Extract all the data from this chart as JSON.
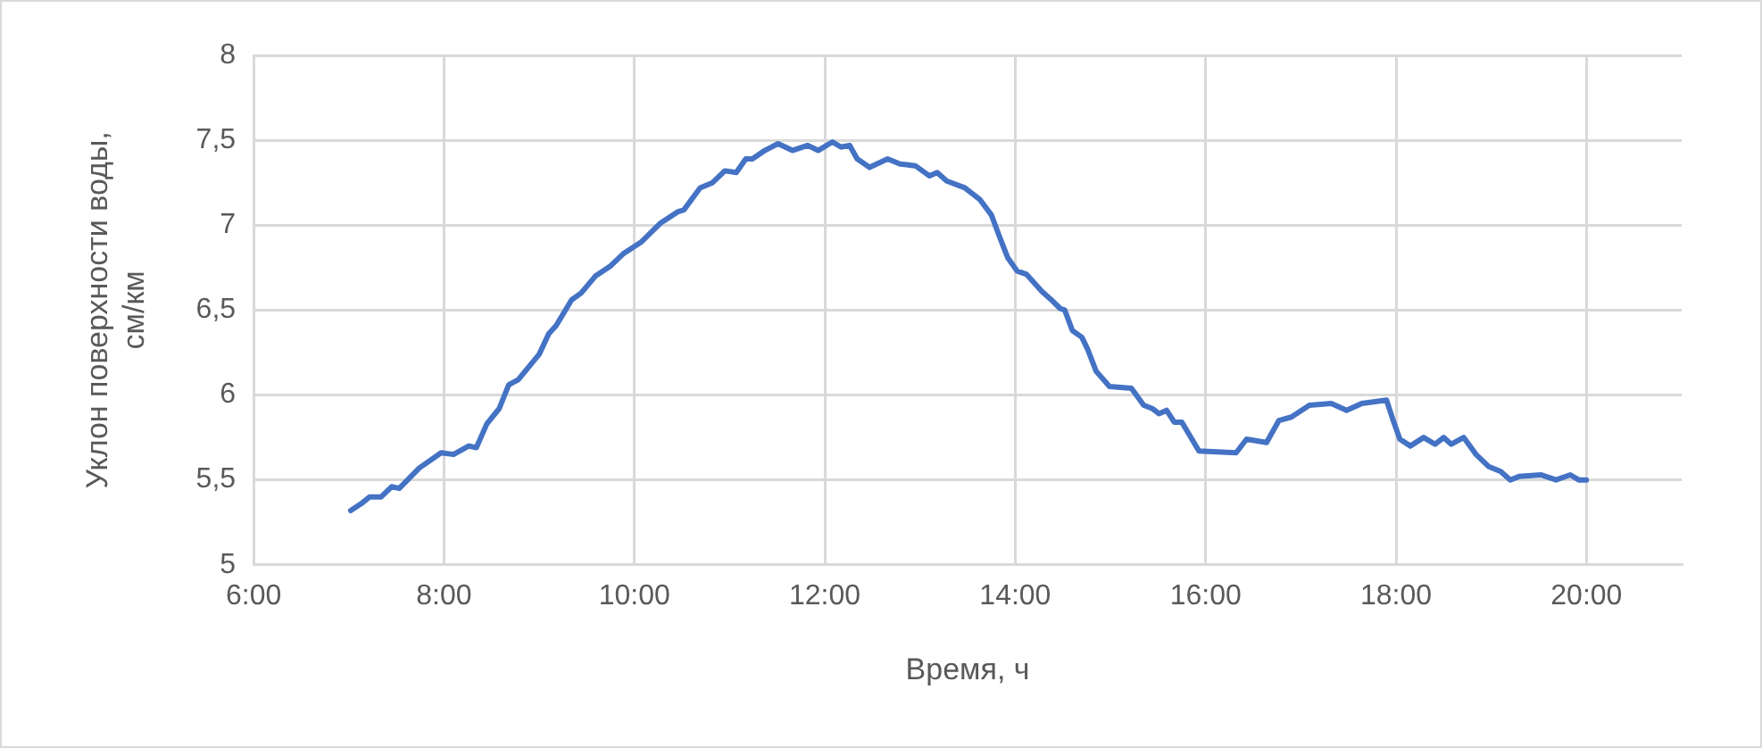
{
  "chart_data": {
    "type": "line",
    "xlabel": "Время, ч",
    "ylabel": "Уклон поверхности воды, см/км",
    "xlim": [
      6,
      21
    ],
    "ylim": [
      5,
      8
    ],
    "xticks": [
      {
        "value": 6,
        "label": "6:00"
      },
      {
        "value": 8,
        "label": "8:00"
      },
      {
        "value": 10,
        "label": "10:00"
      },
      {
        "value": 12,
        "label": "12:00"
      },
      {
        "value": 14,
        "label": "14:00"
      },
      {
        "value": 16,
        "label": "16:00"
      },
      {
        "value": 18,
        "label": "18:00"
      },
      {
        "value": 20,
        "label": "20:00"
      }
    ],
    "yticks": [
      5,
      {
        "value": 5.5,
        "label": "5,5"
      },
      6,
      {
        "value": 6.5,
        "label": "6,5"
      },
      7,
      {
        "value": 7.5,
        "label": "7,5"
      },
      8
    ],
    "grid": true,
    "marker": "none",
    "line_style": "solid",
    "series": [
      {
        "color": "#4472c4",
        "x": [
          7.02,
          7.13,
          7.22,
          7.34,
          7.45,
          7.53,
          7.74,
          7.97,
          8.1,
          8.26,
          8.34,
          8.45,
          8.58,
          8.68,
          8.78,
          9.0,
          9.1,
          9.18,
          9.34,
          9.44,
          9.59,
          9.75,
          9.88,
          10.07,
          10.27,
          10.46,
          10.52,
          10.69,
          10.82,
          10.95,
          11.07,
          11.17,
          11.24,
          11.37,
          11.51,
          11.66,
          11.82,
          11.93,
          12.08,
          12.17,
          12.26,
          12.34,
          12.47,
          12.66,
          12.79,
          12.95,
          13.1,
          13.18,
          13.28,
          13.47,
          13.63,
          13.75,
          13.83,
          13.92,
          14.02,
          14.12,
          14.28,
          14.38,
          14.47,
          14.52,
          14.6,
          14.7,
          14.76,
          14.85,
          14.99,
          15.22,
          15.35,
          15.44,
          15.51,
          15.59,
          15.67,
          15.75,
          15.93,
          16.32,
          16.43,
          16.64,
          16.77,
          16.9,
          17.09,
          17.32,
          17.48,
          17.64,
          17.9,
          17.97,
          18.04,
          18.15,
          18.29,
          18.41,
          18.5,
          18.58,
          18.71,
          18.84,
          18.97,
          19.1,
          19.2,
          19.29,
          19.52,
          19.68,
          19.83,
          19.92,
          20.0
        ],
        "values": [
          5.32,
          5.36,
          5.4,
          5.4,
          5.46,
          5.45,
          5.57,
          5.66,
          5.65,
          5.7,
          5.69,
          5.83,
          5.92,
          6.06,
          6.09,
          6.24,
          6.36,
          6.41,
          6.56,
          6.6,
          6.7,
          6.76,
          6.83,
          6.9,
          7.01,
          7.08,
          7.09,
          7.22,
          7.25,
          7.32,
          7.31,
          7.39,
          7.39,
          7.44,
          7.48,
          7.44,
          7.47,
          7.44,
          7.49,
          7.46,
          7.47,
          7.39,
          7.34,
          7.39,
          7.36,
          7.35,
          7.29,
          7.31,
          7.26,
          7.22,
          7.15,
          7.06,
          6.94,
          6.81,
          6.73,
          6.71,
          6.61,
          6.56,
          6.51,
          6.5,
          6.38,
          6.34,
          6.27,
          6.14,
          6.05,
          6.04,
          5.94,
          5.92,
          5.89,
          5.91,
          5.84,
          5.84,
          5.67,
          5.66,
          5.74,
          5.72,
          5.85,
          5.87,
          5.94,
          5.95,
          5.91,
          5.95,
          5.97,
          5.85,
          5.74,
          5.7,
          5.75,
          5.71,
          5.75,
          5.71,
          5.75,
          5.65,
          5.58,
          5.55,
          5.5,
          5.52,
          5.53,
          5.5,
          5.53,
          5.5,
          5.5
        ]
      }
    ]
  }
}
